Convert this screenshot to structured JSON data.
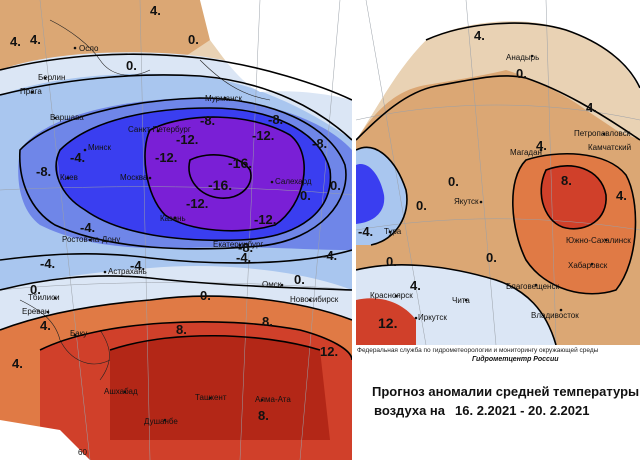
{
  "colors": {
    "deep_purple": "#7a1fd6",
    "blue": "#3a3ef0",
    "light_blue": "#a9c6ef",
    "pale_blue": "#dbe6f5",
    "beige": "#e9d2b4",
    "tan": "#dba774",
    "orange": "#e07a45",
    "red": "#d0402a",
    "dark_red": "#b32717"
  },
  "left_map": {
    "cities": [
      "Осло",
      "Берлин",
      "Прага",
      "Варшава",
      "Минск",
      "Киев",
      "Ростов-на-Дону",
      "Астрахань",
      "Тбилиси",
      "Ереван",
      "Баку",
      "Ашхабад",
      "Ташкент",
      "Душанбе",
      "Алма-Ата",
      "Санкт-Петербург",
      "Мурманск",
      "Москва",
      "Казань",
      "Екатеринбург",
      "Омск",
      "Новосибирск",
      "Салехард"
    ],
    "isolines": [
      "4.",
      "0.",
      "-4.",
      "-8.",
      "-8.",
      "-12.",
      "-12.",
      "-12.",
      "-16.",
      "-16.",
      "-12.",
      "-12.",
      "-8.",
      "-8.",
      "-4.",
      "-4.",
      "-4.",
      "-4.",
      "-4.",
      "0.",
      "0.",
      "0.",
      "4.",
      "8.",
      "8.",
      "8.",
      "12.",
      "4.",
      "0.",
      "-8.",
      "4.",
      "0.",
      "4.",
      "0."
    ],
    "grid_label": "60"
  },
  "right_map": {
    "cities": [
      "Анадырь",
      "Петропавловск",
      "Камчатский",
      "Магадан",
      "Якутск",
      "Южно-Сахалинск",
      "Хабаровск",
      "Благовещенск",
      "Владивосток",
      "Тура",
      "Красноярск",
      "Иркутск",
      "Чита"
    ],
    "isolines": [
      "4.",
      "0.",
      "0.",
      "4.",
      "0.",
      "4.",
      "8.",
      "4.",
      "-4.",
      "0.",
      "0.",
      "4.",
      "12."
    ]
  },
  "caption": {
    "agency": "Федеральная служба по гидрометеорологии и мониторингу окружающей среды",
    "org": "Гидрометцентр России",
    "title_line1": "Прогноз аномалии средней температуры",
    "title_line2": "воздуха на",
    "dates": "16. 2.2021 - 20. 2.2021"
  }
}
